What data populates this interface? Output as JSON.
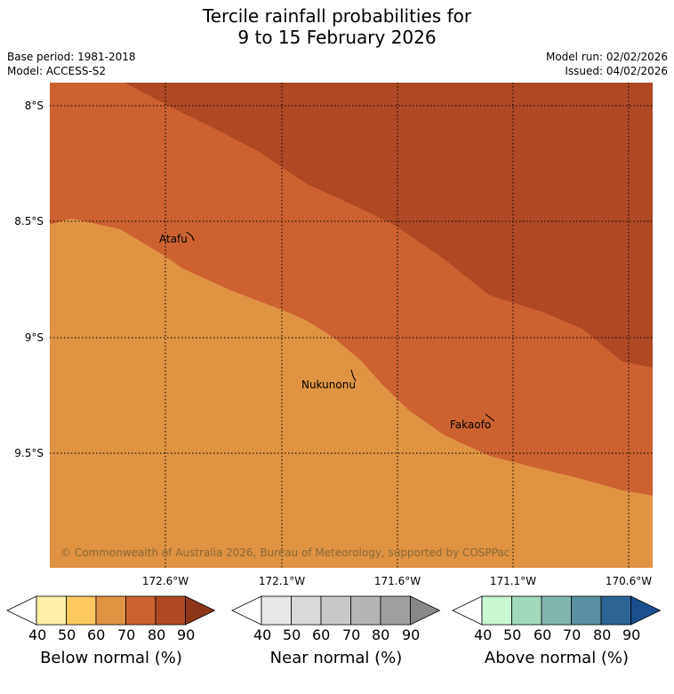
{
  "title": {
    "line1": "Tercile rainfall probabilities for",
    "line2": "9 to 15 February 2026"
  },
  "meta": {
    "base_period": "Base period: 1981-2018",
    "model": "Model: ACCESS-S2",
    "model_run": "Model run: 02/02/2026",
    "issued": "Issued: 04/02/2026"
  },
  "map": {
    "lat_labels": [
      "8°S",
      "8.5°S",
      "9°S",
      "9.5°S"
    ],
    "lon_labels": [
      "172.6°W",
      "172.1°W",
      "171.6°W",
      "171.1°W",
      "170.6°W"
    ],
    "places": [
      "Atafu",
      "Nukunonu",
      "Fakaofo"
    ],
    "copyright": "© Commonwealth of Australia 2026, Bureau of Meteorology, supported by COSPPac",
    "zone_colors": {
      "below_40_50": "#fde99a",
      "below_50_60": "#fec962",
      "below_60_70": "#e09343",
      "below_70_80": "#cb6230",
      "below_80_90": "#ae4924"
    }
  },
  "colorbars": {
    "ticks": [
      "40",
      "50",
      "60",
      "70",
      "80",
      "90"
    ],
    "below": {
      "label": "Below normal (%)",
      "colors": [
        "#ffffff",
        "#fff1a8",
        "#fec962",
        "#e09343",
        "#cb6230",
        "#ae4924",
        "#8c3617"
      ]
    },
    "near": {
      "label": "Near normal (%)",
      "colors": [
        "#ffffff",
        "#e8e8e8",
        "#d9d9d9",
        "#c8c8c8",
        "#b4b4b4",
        "#a0a0a0",
        "#888888"
      ]
    },
    "above": {
      "label": "Above normal (%)",
      "colors": [
        "#ffffff",
        "#c9f7d2",
        "#a2d9bd",
        "#80b6ae",
        "#5891a0",
        "#2d6496",
        "#1a4e8e"
      ]
    }
  }
}
